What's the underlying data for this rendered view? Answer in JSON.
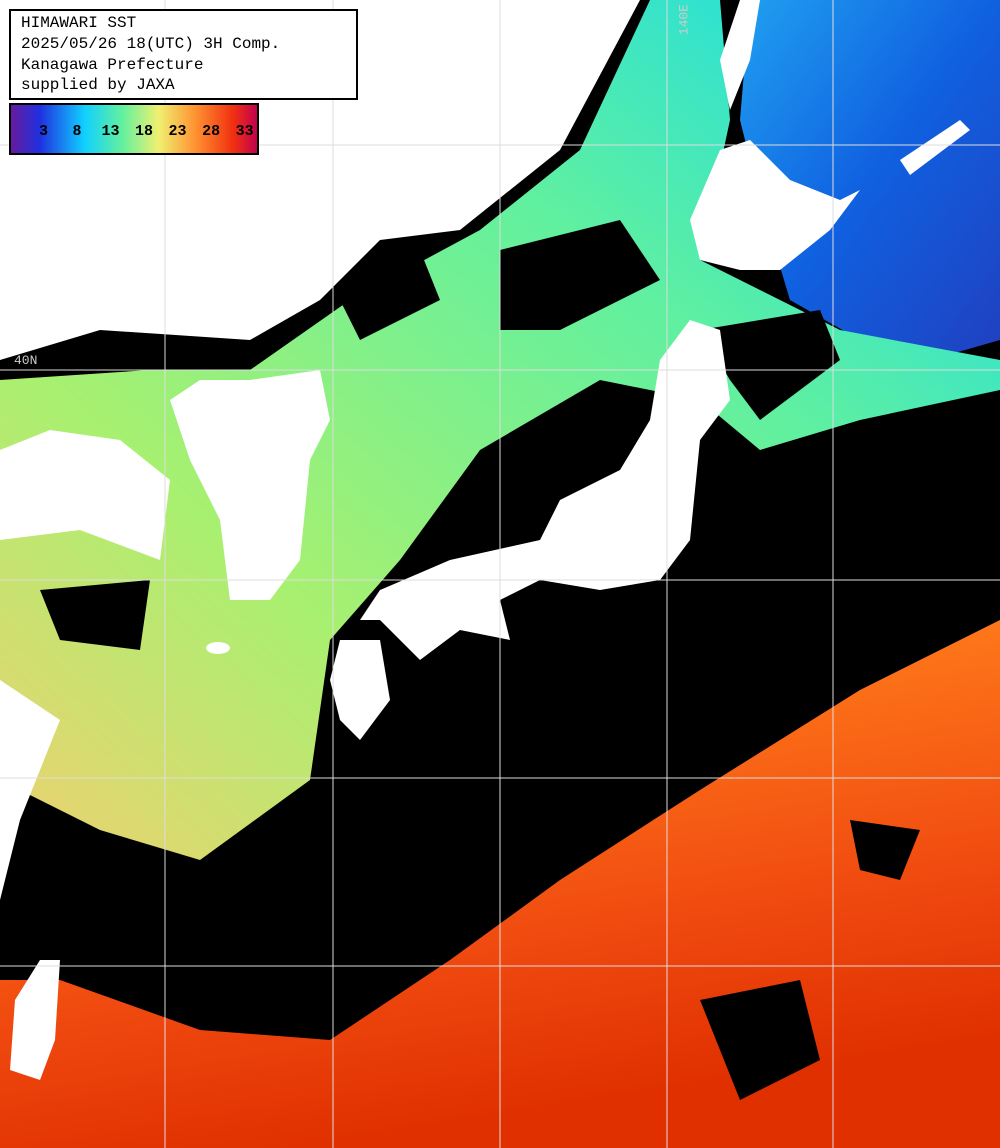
{
  "header": {
    "lines": [
      "HIMAWARI SST",
      "2025/05/26 18(UTC) 3H Comp.",
      "Kanagawa Prefecture",
      "supplied by JAXA"
    ]
  },
  "colorbar": {
    "range": [
      -2,
      35
    ],
    "ticks": [
      3,
      8,
      13,
      18,
      23,
      28,
      33
    ]
  },
  "grid_labels": [
    "140E",
    "40N"
  ]
}
